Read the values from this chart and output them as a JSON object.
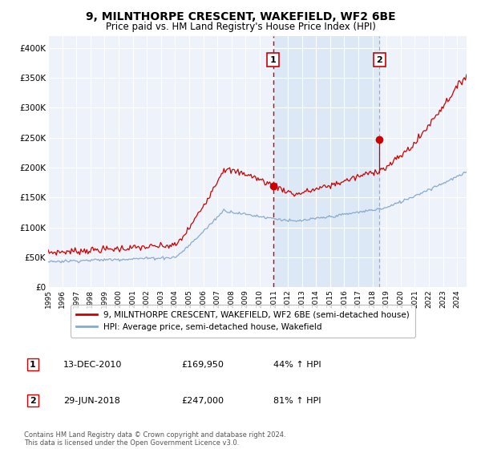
{
  "title": "9, MILNTHORPE CRESCENT, WAKEFIELD, WF2 6BE",
  "subtitle": "Price paid vs. HM Land Registry's House Price Index (HPI)",
  "legend_line1": "9, MILNTHORPE CRESCENT, WAKEFIELD, WF2 6BE (semi-detached house)",
  "legend_line2": "HPI: Average price, semi-detached house, Wakefield",
  "annotation1_date": "13-DEC-2010",
  "annotation1_price": "£169,950",
  "annotation1_hpi": "44% ↑ HPI",
  "annotation2_date": "29-JUN-2018",
  "annotation2_price": "£247,000",
  "annotation2_hpi": "81% ↑ HPI",
  "footer": "Contains HM Land Registry data © Crown copyright and database right 2024.\nThis data is licensed under the Open Government Licence v3.0.",
  "background_color": "#ffffff",
  "plot_bg_color": "#eef3fb",
  "grid_color": "#ffffff",
  "red_line_color": "#cc0000",
  "blue_line_color": "#88aacc",
  "shade_color": "#dce8f5",
  "ylim": [
    0,
    420000
  ],
  "yticks": [
    0,
    50000,
    100000,
    150000,
    200000,
    250000,
    300000,
    350000,
    400000
  ],
  "ytick_labels": [
    "£0",
    "£50K",
    "£100K",
    "£150K",
    "£200K",
    "£250K",
    "£300K",
    "£350K",
    "£400K"
  ],
  "sale1_year": 2010.95,
  "sale1_value": 169950,
  "sale2_year": 2018.5,
  "sale2_value": 247000,
  "sale2_curve_value": 192000,
  "xmin": 1995.0,
  "xmax": 2024.67
}
